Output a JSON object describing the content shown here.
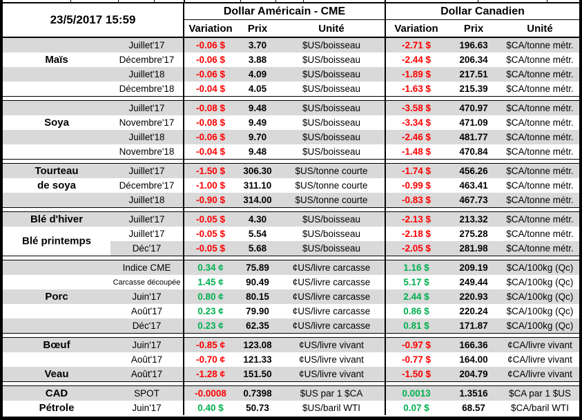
{
  "timestamp": "23/5/2017 15:59",
  "header": {
    "us_title": "Dollar Américain - CME",
    "ca_title": "Dollar Canadien",
    "columns": {
      "variation": "Variation",
      "prix": "Prix",
      "unite": "Unité"
    }
  },
  "colors": {
    "negative": "#FF0000",
    "positive": "#00B050",
    "band": "#D9D9D9",
    "border": "#000000"
  },
  "sections": [
    {
      "id": "mais",
      "rows": [
        {
          "shade": "g",
          "label": "",
          "contract": "Juillet'17",
          "us": {
            "v": "-0.06 $",
            "vc": "neg",
            "p": "3.70",
            "u": "$US/boisseau"
          },
          "ca": {
            "v": "-2.71 $",
            "vc": "neg",
            "p": "196.63",
            "u": "$CA/tonne métr."
          }
        },
        {
          "shade": "w",
          "label": "Maïs",
          "contract": "Décembre'17",
          "us": {
            "v": "-0.06 $",
            "vc": "neg",
            "p": "3.88",
            "u": "$US/boisseau"
          },
          "ca": {
            "v": "-2.44 $",
            "vc": "neg",
            "p": "206.34",
            "u": "$CA/tonne métr."
          }
        },
        {
          "shade": "g",
          "label": "",
          "contract": "Juillet'18",
          "us": {
            "v": "-0.06 $",
            "vc": "neg",
            "p": "4.09",
            "u": "$US/boisseau"
          },
          "ca": {
            "v": "-1.89 $",
            "vc": "neg",
            "p": "217.51",
            "u": "$CA/tonne métr."
          }
        },
        {
          "shade": "w",
          "label": "",
          "contract": "Décembre'18",
          "us": {
            "v": "-0.04 $",
            "vc": "neg",
            "p": "4.05",
            "u": "$US/boisseau"
          },
          "ca": {
            "v": "-1.63 $",
            "vc": "neg",
            "p": "215.39",
            "u": "$CA/tonne métr."
          }
        }
      ]
    },
    {
      "id": "soya",
      "rows": [
        {
          "shade": "g",
          "label": "",
          "contract": "Juillet'17",
          "us": {
            "v": "-0.08 $",
            "vc": "neg",
            "p": "9.48",
            "u": "$US/boisseau"
          },
          "ca": {
            "v": "-3.58 $",
            "vc": "neg",
            "p": "470.97",
            "u": "$CA/tonne métr."
          }
        },
        {
          "shade": "w",
          "label": "Soya",
          "contract": "Novembre'17",
          "us": {
            "v": "-0.08 $",
            "vc": "neg",
            "p": "9.49",
            "u": "$US/boisseau"
          },
          "ca": {
            "v": "-3.34 $",
            "vc": "neg",
            "p": "471.09",
            "u": "$CA/tonne métr."
          }
        },
        {
          "shade": "g",
          "label": "",
          "contract": "Juillet'18",
          "us": {
            "v": "-0.06 $",
            "vc": "neg",
            "p": "9.70",
            "u": "$US/boisseau"
          },
          "ca": {
            "v": "-2.46 $",
            "vc": "neg",
            "p": "481.77",
            "u": "$CA/tonne métr."
          }
        },
        {
          "shade": "w",
          "label": "",
          "contract": "Novembre'18",
          "us": {
            "v": "-0.04 $",
            "vc": "neg",
            "p": "9.48",
            "u": "$US/boisseau"
          },
          "ca": {
            "v": "-1.48 $",
            "vc": "neg",
            "p": "470.84",
            "u": "$CA/tonne métr."
          }
        }
      ]
    },
    {
      "id": "tourteau-de-soya",
      "rows": [
        {
          "shade": "g",
          "label": "Tourteau",
          "contract": "Juillet'17",
          "us": {
            "v": "-1.50 $",
            "vc": "neg",
            "p": "306.30",
            "u": "$US/tonne courte"
          },
          "ca": {
            "v": "-1.74 $",
            "vc": "neg",
            "p": "456.26",
            "u": "$CA/tonne métr."
          }
        },
        {
          "shade": "w",
          "label": "de soya",
          "contract": "Décembre'17",
          "us": {
            "v": "-1.00 $",
            "vc": "neg",
            "p": "311.10",
            "u": "$US/tonne courte"
          },
          "ca": {
            "v": "-0.99 $",
            "vc": "neg",
            "p": "463.41",
            "u": "$CA/tonne métr."
          }
        },
        {
          "shade": "g",
          "label": "",
          "contract": "Juillet'18",
          "us": {
            "v": "-0.90 $",
            "vc": "neg",
            "p": "314.00",
            "u": "$US/tonne courte"
          },
          "ca": {
            "v": "-0.83 $",
            "vc": "neg",
            "p": "467.73",
            "u": "$CA/tonne métr."
          }
        }
      ]
    },
    {
      "id": "ble",
      "rows": [
        {
          "shade": "g",
          "label": "Blé d'hiver",
          "contract": "Juillet'17",
          "us": {
            "v": "-0.05 $",
            "vc": "neg",
            "p": "4.30",
            "u": "$US/boisseau"
          },
          "ca": {
            "v": "-2.13 $",
            "vc": "neg",
            "p": "213.32",
            "u": "$CA/tonne métr."
          }
        },
        {
          "shade": "w",
          "label": "Blé printemps",
          "straddle": true,
          "contract": "Juillet'17",
          "us": {
            "v": "-0.05 $",
            "vc": "neg",
            "p": "5.54",
            "u": "$US/boisseau"
          },
          "ca": {
            "v": "-2.18 $",
            "vc": "neg",
            "p": "275.28",
            "u": "$CA/tonne métr."
          }
        },
        {
          "shade": "g",
          "label": "",
          "name_white": true,
          "contract": "Déc'17",
          "us": {
            "v": "-0.05 $",
            "vc": "neg",
            "p": "5.68",
            "u": "$US/boisseau"
          },
          "ca": {
            "v": "-2.05 $",
            "vc": "neg",
            "p": "281.98",
            "u": "$CA/tonne métr."
          }
        }
      ]
    },
    {
      "id": "porc",
      "rows": [
        {
          "shade": "g",
          "label": "",
          "contract": "Indice CME",
          "us": {
            "v": "0.34 ¢",
            "vc": "pos",
            "p": "75.89",
            "u": "¢US/livre carcasse"
          },
          "ca": {
            "v": "1.16 $",
            "vc": "pos",
            "p": "209.19",
            "u": "$CA/100kg (Qc)"
          }
        },
        {
          "shade": "w",
          "label": "",
          "contract": "Carcasse découpée",
          "small": true,
          "us": {
            "v": "1.45 ¢",
            "vc": "pos",
            "p": "90.49",
            "u": "¢US/livre carcasse"
          },
          "ca": {
            "v": "5.17 $",
            "vc": "pos",
            "p": "249.44",
            "u": "$CA/100kg (Qc)"
          }
        },
        {
          "shade": "g",
          "label": "Porc",
          "contract": "Juin'17",
          "us": {
            "v": "0.80 ¢",
            "vc": "pos",
            "p": "80.15",
            "u": "¢US/livre carcasse"
          },
          "ca": {
            "v": "2.44 $",
            "vc": "pos",
            "p": "220.93",
            "u": "$CA/100kg (Qc)"
          }
        },
        {
          "shade": "w",
          "label": "",
          "contract": "Août'17",
          "us": {
            "v": "0.23 ¢",
            "vc": "pos",
            "p": "79.90",
            "u": "¢US/livre carcasse"
          },
          "ca": {
            "v": "0.86 $",
            "vc": "pos",
            "p": "220.24",
            "u": "$CA/100kg (Qc)"
          }
        },
        {
          "shade": "g",
          "label": "",
          "contract": "Déc'17",
          "us": {
            "v": "0.23 ¢",
            "vc": "pos",
            "p": "62.35",
            "u": "¢US/livre carcasse"
          },
          "ca": {
            "v": "0.81 $",
            "vc": "pos",
            "p": "171.87",
            "u": "$CA/100kg (Qc)"
          }
        }
      ]
    },
    {
      "id": "boeuf-veau",
      "rows": [
        {
          "shade": "g",
          "label": "Bœuf",
          "contract": "Juin'17",
          "us": {
            "v": "-0.85 ¢",
            "vc": "neg",
            "p": "123.08",
            "u": "¢US/livre vivant"
          },
          "ca": {
            "v": "-0.97 $",
            "vc": "neg",
            "p": "166.36",
            "u": "¢CA/livre vivant"
          }
        },
        {
          "shade": "w",
          "label": "",
          "contract": "Août'17",
          "us": {
            "v": "-0.70 ¢",
            "vc": "neg",
            "p": "121.33",
            "u": "¢US/livre vivant"
          },
          "ca": {
            "v": "-0.77 $",
            "vc": "neg",
            "p": "164.00",
            "u": "¢CA/livre vivant"
          }
        },
        {
          "shade": "g",
          "label": "Veau",
          "contract": "Août'17",
          "us": {
            "v": "-1.28 ¢",
            "vc": "neg",
            "p": "151.50",
            "u": "¢US/livre vivant"
          },
          "ca": {
            "v": "-1.50 $",
            "vc": "neg",
            "p": "204.79",
            "u": "¢CA/livre vivant"
          }
        }
      ]
    },
    {
      "id": "cad-petrole",
      "rows": [
        {
          "shade": "g",
          "label": "CAD",
          "contract": "SPOT",
          "us": {
            "v": "-0.0008",
            "vc": "neg",
            "p": "0.7398",
            "u": "$US par 1 $CA"
          },
          "ca": {
            "v": "0.0013",
            "vc": "pos",
            "p": "1.3516",
            "u": "$CA par 1 $US"
          }
        },
        {
          "shade": "w",
          "label": "Pétrole",
          "contract": "Juin'17",
          "us": {
            "v": "0.40 $",
            "vc": "pos",
            "p": "50.73",
            "u": "$US/baril WTI"
          },
          "ca": {
            "v": "0.07 $",
            "vc": "pos",
            "p": "68.57",
            "u": "$CA/baril WTI"
          }
        }
      ]
    }
  ]
}
